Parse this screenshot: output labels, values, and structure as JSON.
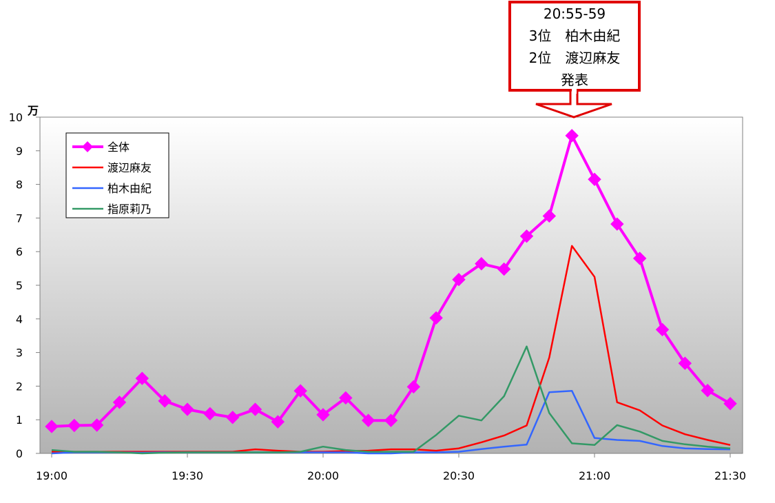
{
  "chart_data": {
    "type": "line",
    "y_unit_label": "万",
    "x_tick_labels": [
      "19:00",
      "19:30",
      "20:00",
      "20:30",
      "21:00",
      "21:30"
    ],
    "x_tick_positions": [
      0,
      6,
      12,
      18,
      24,
      30
    ],
    "y_ticks": [
      0,
      1,
      2,
      3,
      4,
      5,
      6,
      7,
      8,
      9,
      10
    ],
    "ylim": [
      0,
      10
    ],
    "xlim": [
      0,
      30
    ],
    "grid": false,
    "legend_position": "top-left",
    "annotation": {
      "lines": [
        "20:55-59",
        "3位　柏木由紀",
        "2位　渡辺麻友",
        "発表"
      ],
      "points_to_index": 23
    },
    "series": [
      {
        "name": "全体",
        "color": "#ff00ff",
        "markers": true,
        "values": [
          0.8,
          0.83,
          0.84,
          1.52,
          2.23,
          1.56,
          1.31,
          1.18,
          1.07,
          1.31,
          0.94,
          1.86,
          1.15,
          1.65,
          0.98,
          0.98,
          1.98,
          4.03,
          5.17,
          5.64,
          5.48,
          6.46,
          7.06,
          9.45,
          8.15,
          6.82,
          5.8,
          3.68,
          2.68,
          1.87,
          1.48
        ]
      },
      {
        "name": "渡辺麻友",
        "color": "#ff0000",
        "markers": false,
        "values": [
          0.05,
          0.05,
          0.05,
          0.05,
          0.05,
          0.05,
          0.05,
          0.05,
          0.05,
          0.12,
          0.08,
          0.05,
          0.05,
          0.07,
          0.08,
          0.12,
          0.12,
          0.08,
          0.15,
          0.33,
          0.53,
          0.83,
          2.85,
          6.17,
          5.25,
          1.52,
          1.28,
          0.83,
          0.57,
          0.4,
          0.25
        ]
      },
      {
        "name": "柏木由紀",
        "color": "#3366ff",
        "markers": false,
        "values": [
          0.0,
          0.03,
          0.03,
          0.03,
          0.02,
          0.03,
          0.03,
          0.03,
          0.03,
          0.03,
          0.03,
          0.03,
          0.03,
          0.03,
          0.0,
          0.0,
          0.03,
          0.03,
          0.05,
          0.13,
          0.2,
          0.26,
          1.82,
          1.86,
          0.46,
          0.4,
          0.37,
          0.22,
          0.15,
          0.13,
          0.12
        ]
      },
      {
        "name": "指原莉乃",
        "color": "#339966",
        "markers": false,
        "values": [
          0.1,
          0.05,
          0.05,
          0.03,
          0.0,
          0.02,
          0.03,
          0.03,
          0.03,
          0.03,
          0.03,
          0.05,
          0.2,
          0.1,
          0.05,
          0.05,
          0.05,
          0.55,
          1.12,
          0.98,
          1.7,
          3.18,
          1.2,
          0.3,
          0.25,
          0.84,
          0.65,
          0.37,
          0.27,
          0.2,
          0.15
        ]
      }
    ]
  }
}
